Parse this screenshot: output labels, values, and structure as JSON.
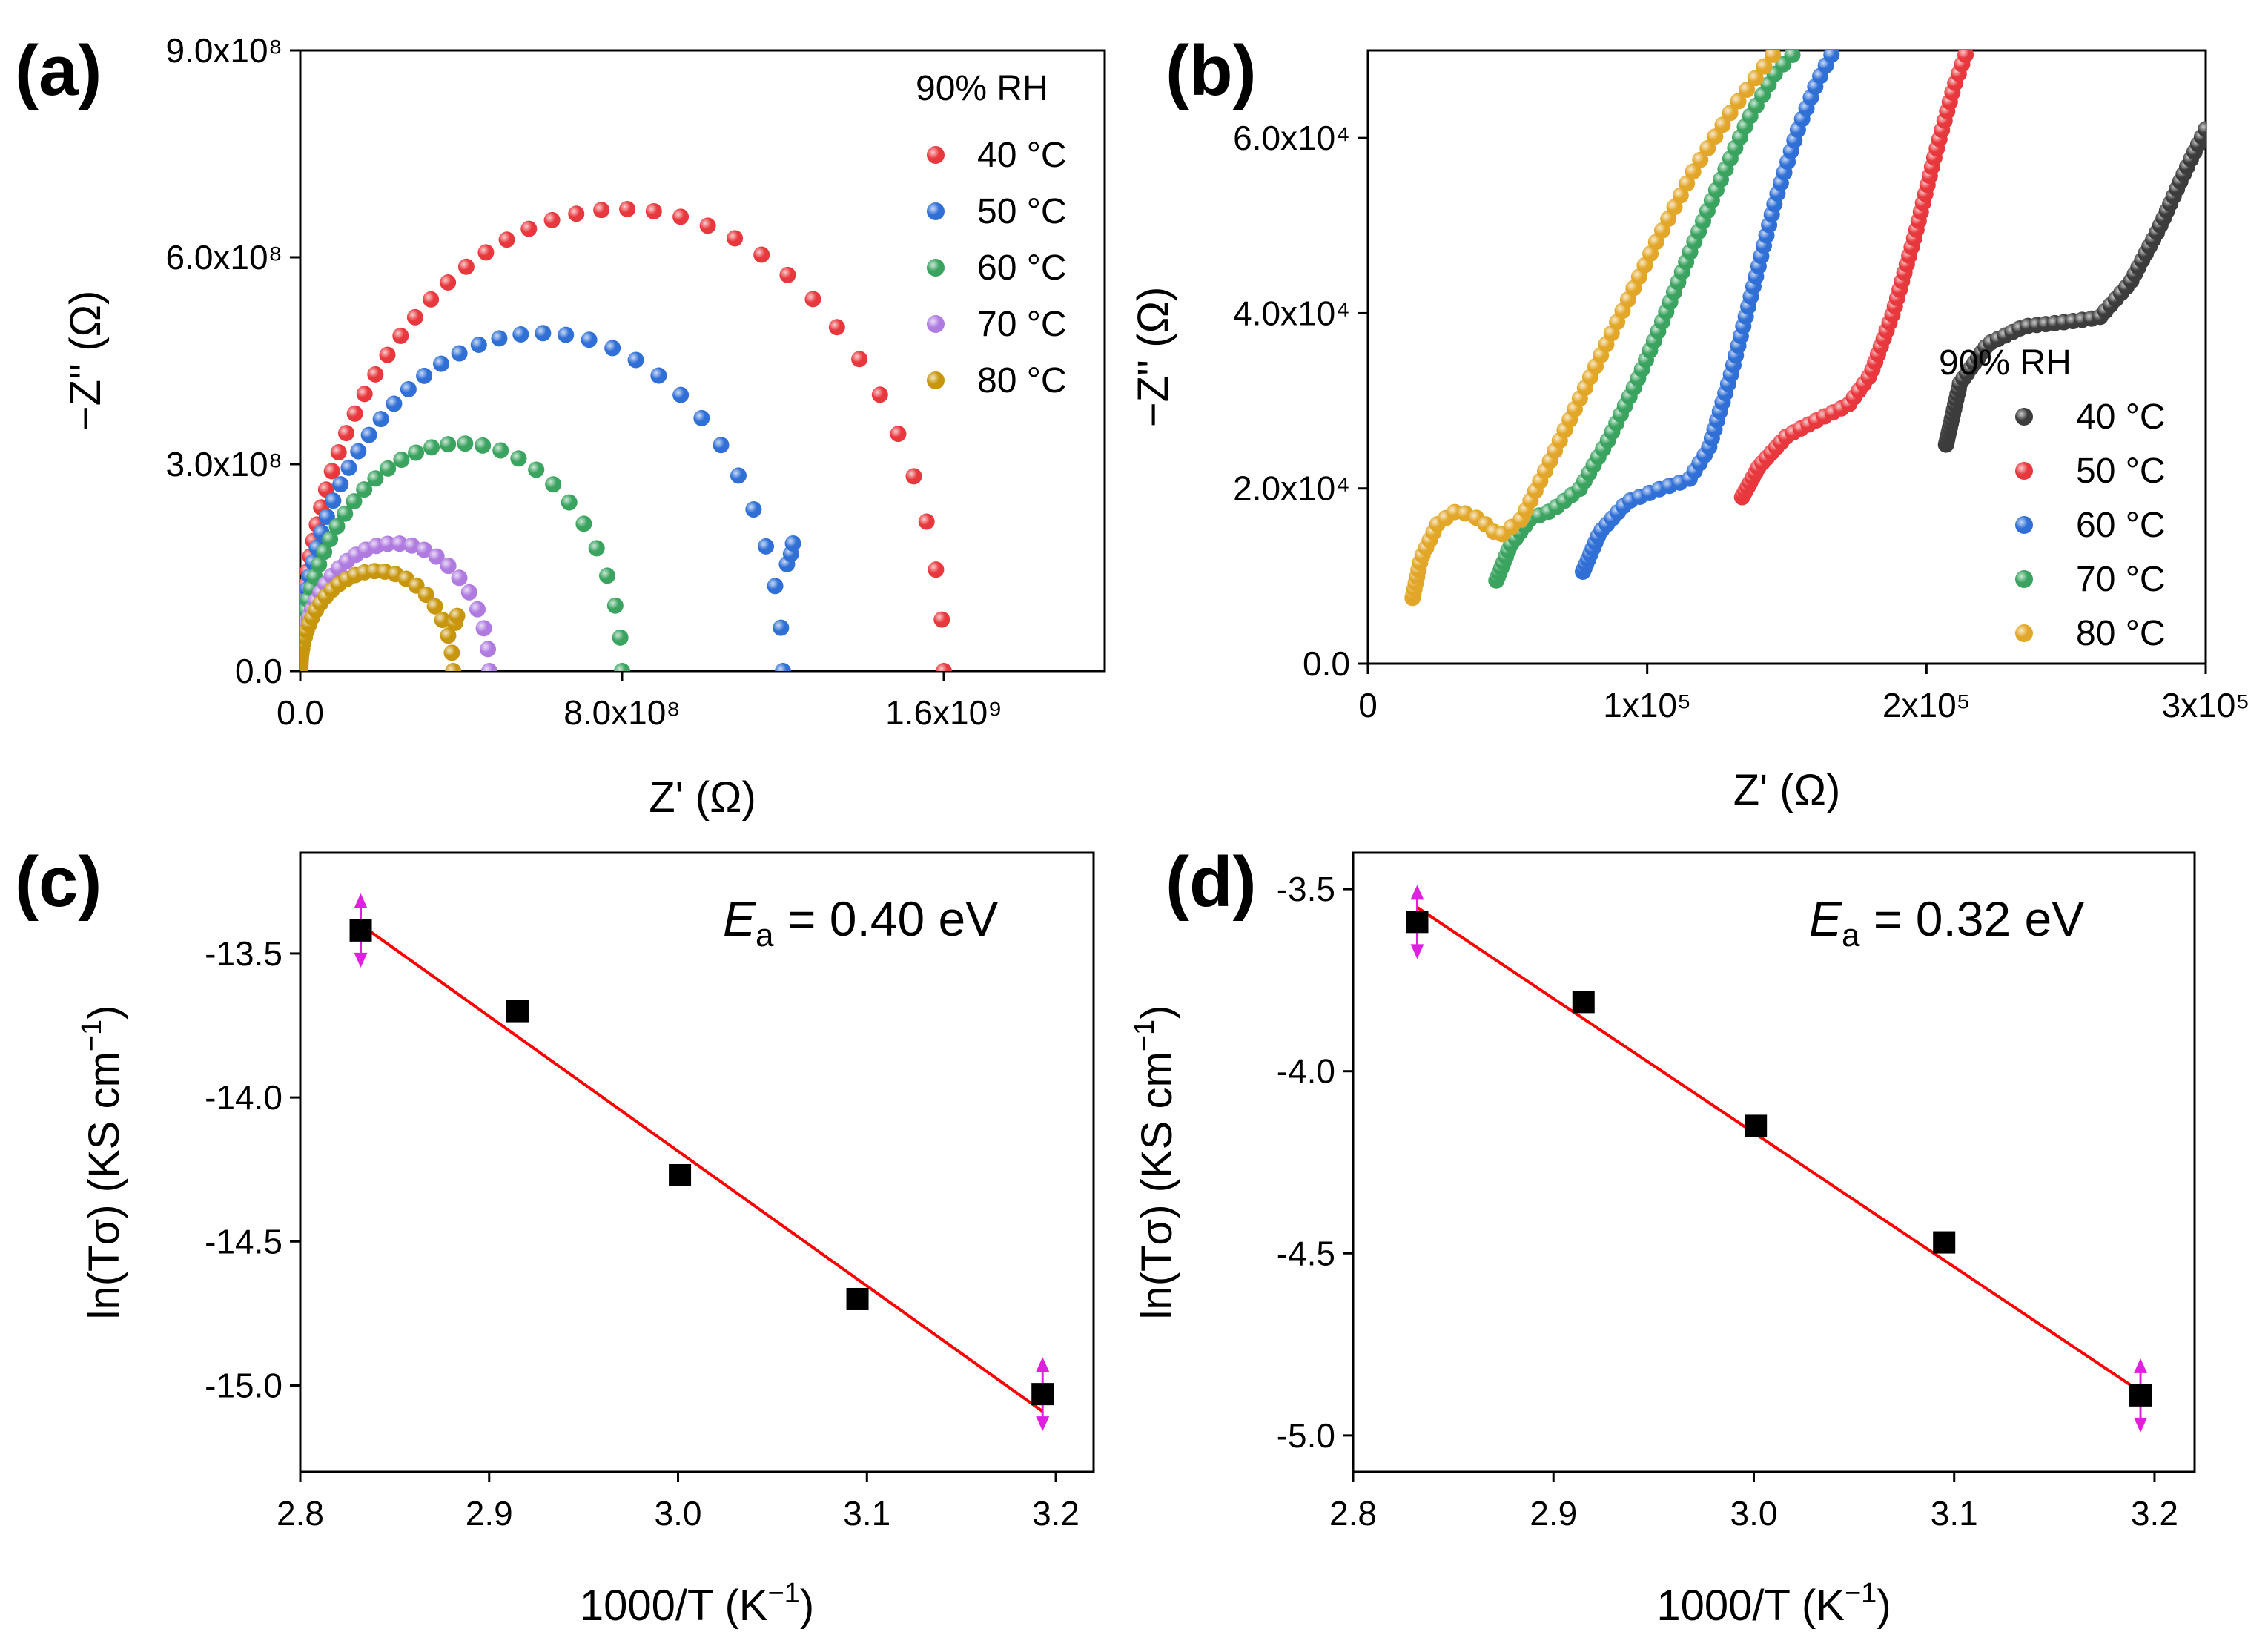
{
  "chart_data": [
    {
      "panel": "(a)",
      "type": "scatter",
      "xlabel": "Z' (Ω)",
      "ylabel": "−Z'' (Ω)",
      "xlim": [
        0,
        2000000000.0
      ],
      "ylim": [
        0,
        900000000.0
      ],
      "xticks": [
        {
          "v": 0,
          "label": "0.0"
        },
        {
          "v": 800000000.0,
          "label": "8.0x10⁸"
        },
        {
          "v": 1600000000.0,
          "label": "1.6x10⁹"
        }
      ],
      "yticks": [
        {
          "v": 0,
          "label": "0.0"
        },
        {
          "v": 300000000.0,
          "label": "3.0x10⁸"
        },
        {
          "v": 600000000.0,
          "label": "6.0x10⁸"
        },
        {
          "v": 900000000.0,
          "label": "9.0x10⁸"
        }
      ],
      "legend_title": "90% RH",
      "legend_position": "top-right",
      "series": [
        {
          "name": "40 °C",
          "color": "#e8383d",
          "R": 1600000000.0,
          "peak": 670000000.0,
          "tail": []
        },
        {
          "name": "50 °C",
          "color": "#2f6fd6",
          "R": 1200000000.0,
          "peak": 490000000.0,
          "tail": [
            [
              1210000000.0,
              155000000.0
            ],
            [
              1220000000.0,
              170000000.0
            ],
            [
              1225000000.0,
              185000000.0
            ]
          ]
        },
        {
          "name": "60 °C",
          "color": "#3aa35f",
          "R": 800000000.0,
          "peak": 330000000.0,
          "tail": []
        },
        {
          "name": "70 °C",
          "color": "#b07be0",
          "R": 470000000.0,
          "peak": 185000000.0,
          "tail": []
        },
        {
          "name": "80 °C",
          "color": "#c8960c",
          "R": 380000000.0,
          "peak": 145000000.0,
          "tail": [
            [
              385000000.0,
              70000000.0
            ],
            [
              390000000.0,
              80000000.0
            ]
          ]
        }
      ]
    },
    {
      "panel": "(b)",
      "type": "scatter",
      "xlabel": "Z' (Ω)",
      "ylabel": "−Z'' (Ω)",
      "xlim": [
        0,
        300000.0
      ],
      "ylim": [
        0,
        70000.0
      ],
      "xticks": [
        {
          "v": 0,
          "label": "0"
        },
        {
          "v": 100000.0,
          "label": "1x10⁵"
        },
        {
          "v": 200000.0,
          "label": "2x10⁵"
        },
        {
          "v": 300000.0,
          "label": "3x10⁵"
        }
      ],
      "yticks": [
        {
          "v": 0,
          "label": "0.0"
        },
        {
          "v": 20000.0,
          "label": "2.0x10⁴"
        },
        {
          "v": 40000.0,
          "label": "4.0x10⁴"
        },
        {
          "v": 60000.0,
          "label": "6.0x10⁴"
        }
      ],
      "legend_title": "90% RH",
      "legend_position": "bottom-right",
      "series": [
        {
          "name": "40 °C",
          "color": "#3c3c3c",
          "curve": [
            [
              207000.0,
              25000.0
            ],
            [
              212000.0,
              32000.0
            ],
            [
              222000.0,
              36500.0
            ],
            [
              235000.0,
              38500.0
            ],
            [
              250000.0,
              39000.0
            ],
            [
              262000.0,
              39500.0
            ],
            [
              273000.0,
              43500.0
            ],
            [
              283000.0,
              49500.0
            ],
            [
              293000.0,
              56500.0
            ],
            [
              300000.0,
              61000.0
            ]
          ]
        },
        {
          "name": "50 °C",
          "color": "#e8383d",
          "curve": [
            [
              134000.0,
              19000.0
            ],
            [
              140000.0,
              22500.0
            ],
            [
              150000.0,
              26000.0
            ],
            [
              162000.0,
              28000.0
            ],
            [
              172000.0,
              29500.0
            ],
            [
              180000.0,
              33000.0
            ],
            [
              188000.0,
              40000.0
            ],
            [
              196000.0,
              49000.0
            ],
            [
              203000.0,
              58000.0
            ],
            [
              210000.0,
              66000.0
            ],
            [
              214000.0,
              69500.0
            ]
          ]
        },
        {
          "name": "60 °C",
          "color": "#2f6fd6",
          "curve": [
            [
              77000.0,
              10500.0
            ],
            [
              83000.0,
              15000.0
            ],
            [
              93000.0,
              18500.0
            ],
            [
              105000.0,
              20000.0
            ],
            [
              115000.0,
              21000.0
            ],
            [
              122000.0,
              24500.0
            ],
            [
              130000.0,
              33000.0
            ],
            [
              138000.0,
              43000.0
            ],
            [
              146000.0,
              53000.0
            ],
            [
              154000.0,
              61000.0
            ],
            [
              161000.0,
              66500.0
            ],
            [
              166000.0,
              69500.0
            ]
          ]
        },
        {
          "name": "70 °C",
          "color": "#3aa35f",
          "curve": [
            [
              46000.0,
              9500.0
            ],
            [
              51000.0,
              13500.0
            ],
            [
              58000.0,
              16500.0
            ],
            [
              66000.0,
              17500.0
            ],
            [
              76000.0,
              20000.0
            ],
            [
              86000.0,
              25500.0
            ],
            [
              96000.0,
              32000.0
            ],
            [
              106000.0,
              39500.0
            ],
            [
              116000.0,
              47500.0
            ],
            [
              126000.0,
              55000.0
            ],
            [
              136000.0,
              62000.0
            ],
            [
              146000.0,
              67500.0
            ],
            [
              152000.0,
              69500.0
            ]
          ]
        },
        {
          "name": "80 °C",
          "color": "#e2a729",
          "curve": [
            [
              16000.0,
              7500.0
            ],
            [
              19000.0,
              12000.0
            ],
            [
              25000.0,
              16000.0
            ],
            [
              32000.0,
              17500.0
            ],
            [
              40000.0,
              16500.0
            ],
            [
              47000.0,
              14500.0
            ],
            [
              55000.0,
              16500.0
            ],
            [
              65000.0,
              23000.0
            ],
            [
              77000.0,
              31000.0
            ],
            [
              90000.0,
              39500.0
            ],
            [
              103000.0,
              48000.0
            ],
            [
              117000.0,
              56500.0
            ],
            [
              131000.0,
              63500.0
            ],
            [
              145000.0,
              69500.0
            ]
          ]
        }
      ]
    },
    {
      "panel": "(c)",
      "type": "scatter",
      "xlabel": "1000/T (K",
      "xlabel_sup": "−1",
      "xlabel_end": ")",
      "ylabel": "ln(Tσ) (KS cm",
      "ylabel_sup": "−1",
      "ylabel_end": ")",
      "xlim": [
        2.8,
        3.22
      ],
      "ylim": [
        -15.3,
        -13.15
      ],
      "xticks": [
        {
          "v": 2.8,
          "label": "2.8"
        },
        {
          "v": 2.9,
          "label": "2.9"
        },
        {
          "v": 3.0,
          "label": "3.0"
        },
        {
          "v": 3.1,
          "label": "3.1"
        },
        {
          "v": 3.2,
          "label": "3.2"
        }
      ],
      "yticks": [
        {
          "v": -13.5,
          "label": "-13.5"
        },
        {
          "v": -14.0,
          "label": "-14.0"
        },
        {
          "v": -14.5,
          "label": "-14.5"
        },
        {
          "v": -15.0,
          "label": "-15.0"
        }
      ],
      "x": [
        2.832,
        2.915,
        3.001,
        3.095,
        3.193
      ],
      "y": [
        -13.42,
        -13.7,
        -14.27,
        -14.7,
        -15.03
      ],
      "fit": [
        [
          2.832,
          -13.4
        ],
        [
          3.193,
          -15.09
        ]
      ],
      "annotation": {
        "symbol": "E",
        "sub": "a",
        "text": " = 0.40 eV"
      }
    },
    {
      "panel": "(d)",
      "type": "scatter",
      "xlabel": "1000/T (K",
      "xlabel_sup": "−1",
      "xlabel_end": ")",
      "ylabel": "ln(Tσ) (KS cm",
      "ylabel_sup": "−1",
      "ylabel_end": ")",
      "xlim": [
        2.8,
        3.22
      ],
      "ylim": [
        -5.1,
        -3.4
      ],
      "xticks": [
        {
          "v": 2.8,
          "label": "2.8"
        },
        {
          "v": 2.9,
          "label": "2.9"
        },
        {
          "v": 3.0,
          "label": "3.0"
        },
        {
          "v": 3.1,
          "label": "3.1"
        },
        {
          "v": 3.2,
          "label": "3.2"
        }
      ],
      "yticks": [
        {
          "v": -3.5,
          "label": "-3.5"
        },
        {
          "v": -4.0,
          "label": "-4.0"
        },
        {
          "v": -4.5,
          "label": "-4.5"
        },
        {
          "v": -5.0,
          "label": "-5.0"
        }
      ],
      "x": [
        2.832,
        2.915,
        3.001,
        3.095,
        3.193
      ],
      "y": [
        -3.59,
        -3.81,
        -4.15,
        -4.47,
        -4.89
      ],
      "fit": [
        [
          2.832,
          -3.55
        ],
        [
          3.193,
          -4.88
        ]
      ],
      "annotation": {
        "symbol": "E",
        "sub": "a",
        "text": " = 0.32 eV"
      }
    }
  ]
}
